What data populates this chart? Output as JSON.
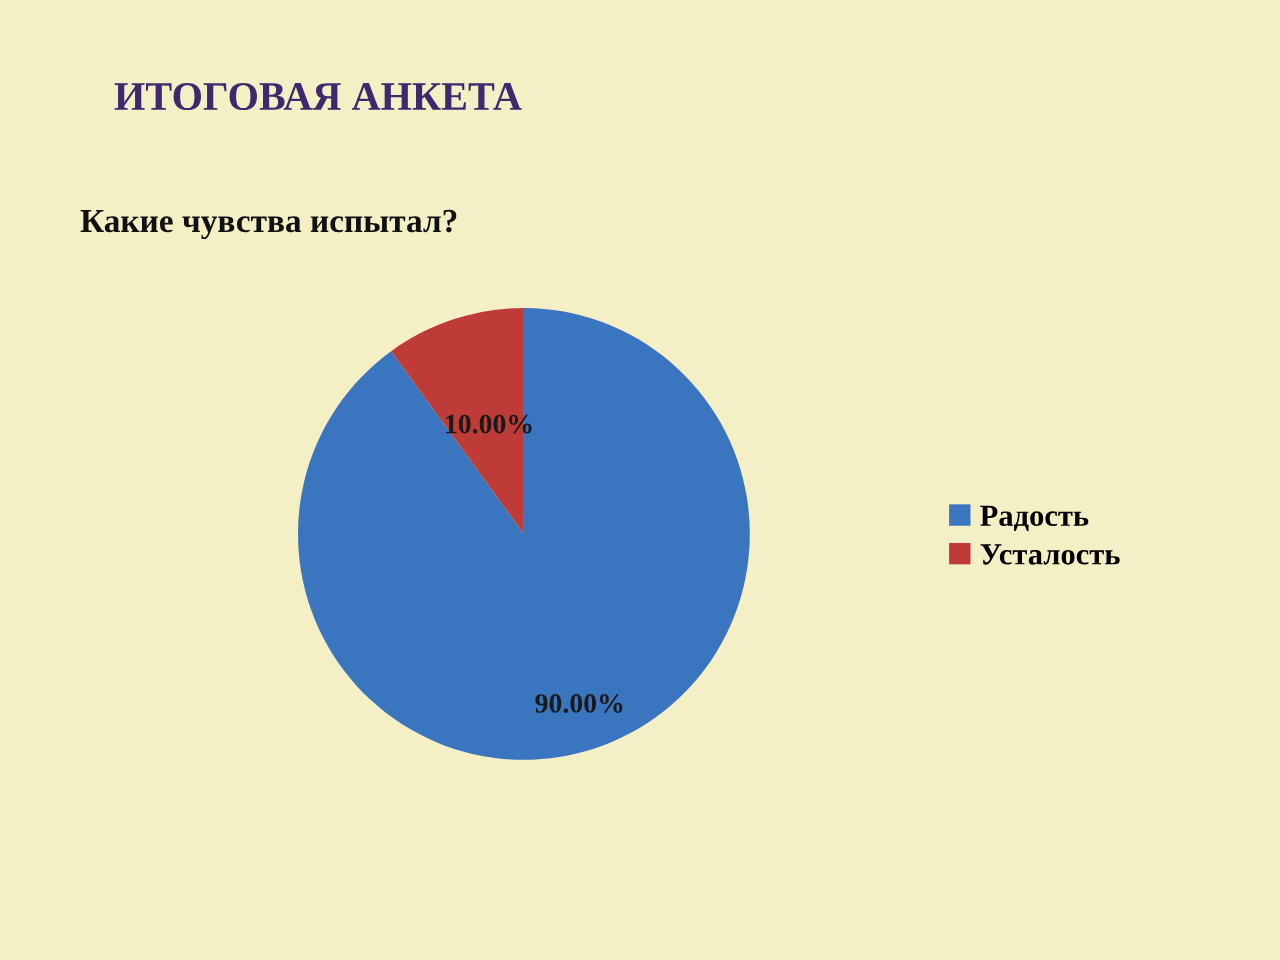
{
  "chart_data": {
    "type": "pie",
    "title": "ИТОГОВАЯ АНКЕТА",
    "subtitle": "Какие чувства испытал?",
    "categories": [
      "Радость",
      "Усталость"
    ],
    "values": [
      90,
      10
    ],
    "colors": [
      "#3a75c0",
      "#bf3b37"
    ],
    "value_labels": [
      "90.00%",
      "10.00%"
    ],
    "legend": "right"
  }
}
